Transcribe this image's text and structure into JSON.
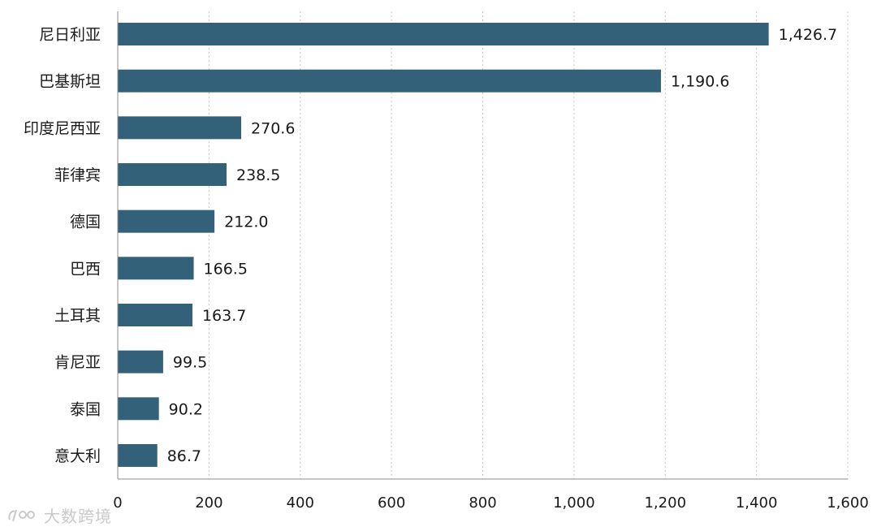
{
  "chart_data": {
    "type": "bar",
    "orientation": "horizontal",
    "title": "",
    "xlabel": "",
    "ylabel": "",
    "categories": [
      "尼日利亚",
      "巴基斯坦",
      "印度尼西亚",
      "菲律宾",
      "德国",
      "巴西",
      "土耳其",
      "肯尼亚",
      "泰国",
      "意大利"
    ],
    "values": [
      1426.7,
      1190.6,
      270.6,
      238.5,
      212.0,
      166.5,
      163.7,
      99.5,
      90.2,
      86.7
    ],
    "value_labels": [
      "1,426.7",
      "1,190.6",
      "270.6",
      "238.5",
      "212.0",
      "166.5",
      "163.7",
      "99.5",
      "90.2",
      "86.7"
    ],
    "xlim": [
      0,
      1600
    ],
    "xticks": [
      0,
      200,
      400,
      600,
      800,
      1000,
      1200,
      1400,
      1600
    ],
    "xtick_labels": [
      "0",
      "200",
      "400",
      "600",
      "800",
      "1,000",
      "1,200",
      "1,400",
      "1,600"
    ],
    "grid": "vertical dotted",
    "bar_color": "#33617a",
    "legend": "none"
  },
  "watermark": {
    "text": "大数跨境",
    "icon": "logo-icon",
    "color": "#c9c9c9"
  }
}
